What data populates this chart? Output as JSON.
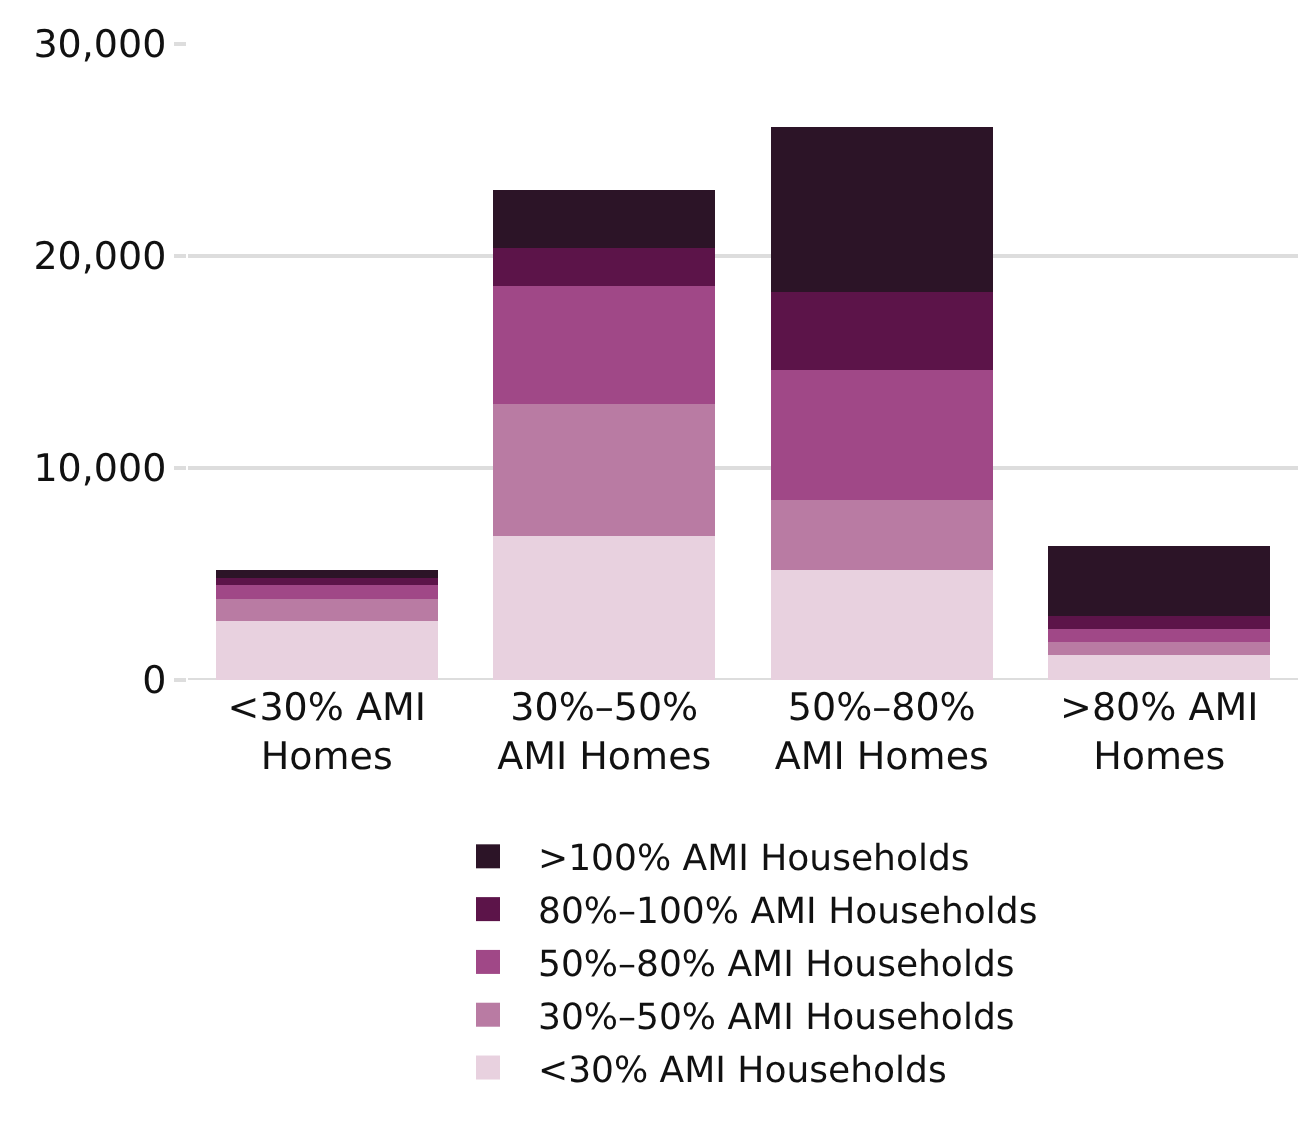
{
  "chart_data": {
    "type": "bar",
    "stacked": true,
    "categories": [
      "<30% AMI\nHomes",
      "30%–50%\nAMI Homes",
      "50%–80%\nAMI Homes",
      ">80% AMI\nHomes"
    ],
    "series": [
      {
        "name": "<30% AMI Households",
        "color": "#e8d1df",
        "values": [
          2800,
          6800,
          5200,
          1200
        ]
      },
      {
        "name": "30%–50% AMI Households",
        "color": "#b97ba3",
        "values": [
          1000,
          6200,
          3300,
          600
        ]
      },
      {
        "name": "50%–80% AMI Households",
        "color": "#a04887",
        "values": [
          700,
          5600,
          6100,
          600
        ]
      },
      {
        "name": "80%–100% AMI Households",
        "color": "#5c1449",
        "values": [
          300,
          1800,
          3700,
          600
        ]
      },
      {
        "name": ">100% AMI Households",
        "color": "#2c1427",
        "values": [
          400,
          2700,
          7800,
          3300
        ]
      }
    ],
    "ylim": [
      0,
      30000
    ],
    "yticks": [
      {
        "value": 0,
        "label": "0"
      },
      {
        "value": 10000,
        "label": "10,000"
      },
      {
        "value": 20000,
        "label": "20,000"
      },
      {
        "value": 30000,
        "label": "30,000"
      }
    ],
    "grid": "y",
    "legend": "bottom"
  }
}
